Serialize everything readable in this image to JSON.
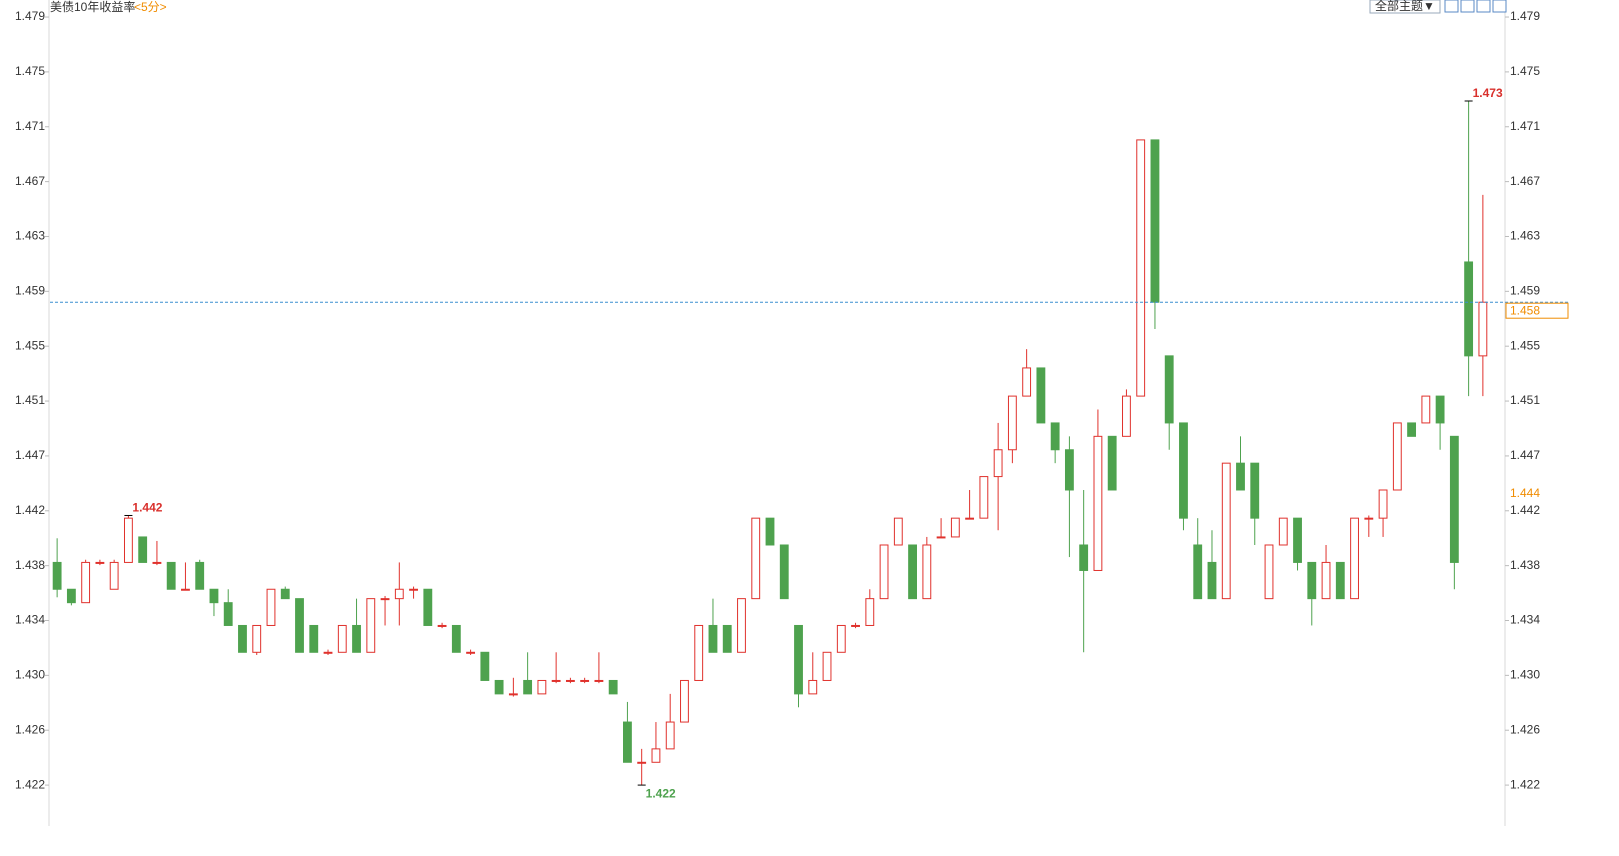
{
  "chart_data": {
    "type": "candlestick",
    "title": "美债10年收益率",
    "subtitle": "<5分>",
    "ui": {
      "theme_button": "全部主题▼"
    },
    "up_color": "#e0312c",
    "down_color": "#4ea24e",
    "ylim": [
      1.41895,
      1.48053
    ],
    "yticks": [
      {
        "value": 1.422,
        "label": "1.422"
      },
      {
        "value": 1.42609,
        "label": "1.426"
      },
      {
        "value": 1.43018,
        "label": "1.430"
      },
      {
        "value": 1.43427,
        "label": "1.434"
      },
      {
        "value": 1.43836,
        "label": "1.438"
      },
      {
        "value": 1.44245,
        "label": "1.442"
      },
      {
        "value": 1.44654,
        "label": "1.447"
      },
      {
        "value": 1.45063,
        "label": "1.451"
      },
      {
        "value": 1.45472,
        "label": "1.455"
      },
      {
        "value": 1.45881,
        "label": "1.459"
      },
      {
        "value": 1.4629,
        "label": "1.463"
      },
      {
        "value": 1.46699,
        "label": "1.467"
      },
      {
        "value": 1.47108,
        "label": "1.471"
      },
      {
        "value": 1.47517,
        "label": "1.475"
      },
      {
        "value": 1.47926,
        "label": "1.479"
      }
    ],
    "open": [
      1.4386,
      1.4366,
      1.4356,
      1.4386,
      1.4366,
      1.4386,
      1.4405,
      1.4386,
      1.4386,
      1.4366,
      1.4386,
      1.4366,
      1.4356,
      1.4339,
      1.4319,
      1.4339,
      1.4366,
      1.4359,
      1.4339,
      1.4319,
      1.4319,
      1.4339,
      1.4319,
      1.4359,
      1.4359,
      1.4366,
      1.4366,
      1.4339,
      1.4339,
      1.4319,
      1.4319,
      1.4298,
      1.4288,
      1.4298,
      1.4288,
      1.4298,
      1.4298,
      1.4298,
      1.4298,
      1.4298,
      1.4267,
      1.4237,
      1.4237,
      1.4247,
      1.4267,
      1.4298,
      1.4339,
      1.4339,
      1.4319,
      1.4359,
      1.4419,
      1.4399,
      1.4339,
      1.4288,
      1.4298,
      1.4319,
      1.4339,
      1.4339,
      1.4359,
      1.4399,
      1.4399,
      1.4359,
      1.4405,
      1.4405,
      1.4419,
      1.4419,
      1.445,
      1.447,
      1.451,
      1.4531,
      1.449,
      1.447,
      1.4399,
      1.438,
      1.448,
      1.448,
      1.451,
      1.4701,
      1.454,
      1.449,
      1.4399,
      1.4386,
      1.4359,
      1.446,
      1.446,
      1.4359,
      1.4399,
      1.4419,
      1.4386,
      1.4359,
      1.4386,
      1.4359,
      1.4419,
      1.4419,
      1.444,
      1.449,
      1.449,
      1.451,
      1.448,
      1.461,
      1.454
    ],
    "high": [
      1.4404,
      1.4366,
      1.4388,
      1.4388,
      1.4388,
      1.4421,
      1.4405,
      1.4402,
      1.4386,
      1.4386,
      1.4388,
      1.4366,
      1.4366,
      1.4339,
      1.4339,
      1.4366,
      1.4368,
      1.4359,
      1.4339,
      1.4321,
      1.4339,
      1.4359,
      1.4359,
      1.4361,
      1.4386,
      1.4368,
      1.4366,
      1.4341,
      1.4339,
      1.4321,
      1.4319,
      1.4298,
      1.43,
      1.4319,
      1.4298,
      1.4319,
      1.43,
      1.43,
      1.4319,
      1.4298,
      1.4282,
      1.4247,
      1.4267,
      1.4288,
      1.4298,
      1.4339,
      1.4359,
      1.4339,
      1.4359,
      1.4419,
      1.4419,
      1.4399,
      1.4339,
      1.4319,
      1.4319,
      1.4339,
      1.4341,
      1.4366,
      1.4399,
      1.4419,
      1.4399,
      1.4405,
      1.4419,
      1.4419,
      1.444,
      1.445,
      1.449,
      1.451,
      1.4545,
      1.4531,
      1.449,
      1.448,
      1.444,
      1.45,
      1.448,
      1.4515,
      1.4701,
      1.4701,
      1.454,
      1.449,
      1.4419,
      1.441,
      1.446,
      1.448,
      1.446,
      1.4399,
      1.4419,
      1.4419,
      1.4386,
      1.4399,
      1.4386,
      1.4419,
      1.4421,
      1.444,
      1.449,
      1.449,
      1.451,
      1.451,
      1.448,
      1.473,
      1.466
    ],
    "low": [
      1.436,
      1.4354,
      1.4356,
      1.4384,
      1.4366,
      1.4386,
      1.4386,
      1.4384,
      1.4366,
      1.4366,
      1.4366,
      1.4346,
      1.4339,
      1.4319,
      1.4317,
      1.4339,
      1.4359,
      1.4319,
      1.4319,
      1.4317,
      1.4319,
      1.4319,
      1.4319,
      1.4339,
      1.4339,
      1.4359,
      1.4339,
      1.4337,
      1.4319,
      1.4317,
      1.4298,
      1.4288,
      1.4286,
      1.4288,
      1.4288,
      1.4296,
      1.4296,
      1.4296,
      1.4296,
      1.4288,
      1.4237,
      1.422,
      1.4237,
      1.4247,
      1.4267,
      1.4298,
      1.4319,
      1.4319,
      1.4319,
      1.4359,
      1.4399,
      1.4359,
      1.4278,
      1.4288,
      1.4298,
      1.4319,
      1.4337,
      1.4339,
      1.4359,
      1.4399,
      1.4359,
      1.4359,
      1.4405,
      1.4405,
      1.4419,
      1.4419,
      1.441,
      1.446,
      1.451,
      1.449,
      1.446,
      1.439,
      1.4319,
      1.438,
      1.444,
      1.448,
      1.451,
      1.456,
      1.447,
      1.441,
      1.4359,
      1.4359,
      1.4359,
      1.444,
      1.4399,
      1.4359,
      1.4399,
      1.438,
      1.4339,
      1.4359,
      1.4359,
      1.4359,
      1.4405,
      1.4405,
      1.444,
      1.448,
      1.449,
      1.447,
      1.4366,
      1.451,
      1.451
    ],
    "close": [
      1.4366,
      1.4356,
      1.4386,
      1.4386,
      1.4386,
      1.4419,
      1.4386,
      1.4386,
      1.4366,
      1.4366,
      1.4366,
      1.4356,
      1.4339,
      1.4319,
      1.4339,
      1.4366,
      1.4359,
      1.4319,
      1.4319,
      1.4319,
      1.4339,
      1.4319,
      1.4359,
      1.4359,
      1.4366,
      1.4366,
      1.4339,
      1.4339,
      1.4319,
      1.4319,
      1.4298,
      1.4288,
      1.4288,
      1.4288,
      1.4298,
      1.4298,
      1.4298,
      1.4298,
      1.4298,
      1.4288,
      1.4237,
      1.4237,
      1.4247,
      1.4267,
      1.4298,
      1.4339,
      1.4319,
      1.4319,
      1.4359,
      1.4419,
      1.4399,
      1.4359,
      1.4288,
      1.4298,
      1.4319,
      1.4339,
      1.4339,
      1.4359,
      1.4399,
      1.4419,
      1.4359,
      1.4399,
      1.4405,
      1.4419,
      1.4419,
      1.445,
      1.447,
      1.451,
      1.4531,
      1.449,
      1.447,
      1.444,
      1.438,
      1.448,
      1.444,
      1.451,
      1.4701,
      1.458,
      1.449,
      1.4419,
      1.4359,
      1.4359,
      1.446,
      1.444,
      1.4419,
      1.4399,
      1.4419,
      1.4386,
      1.4359,
      1.4386,
      1.4359,
      1.4419,
      1.4419,
      1.444,
      1.449,
      1.448,
      1.451,
      1.449,
      1.4386,
      1.454,
      1.458
    ],
    "annotations": [
      {
        "label": "1.442",
        "value": 1.4421,
        "color": "#d9302c"
      },
      {
        "label": "1.422",
        "value": 1.422,
        "color": "#4ea24e"
      },
      {
        "label": "1.473",
        "value": 1.473,
        "color": "#d9302c"
      }
    ],
    "last_price": 1.458,
    "reference_price": {
      "value": 1.4437,
      "label": "1.444"
    },
    "price_color": "#f08c00",
    "last_line_color": "#3a8fd0"
  }
}
